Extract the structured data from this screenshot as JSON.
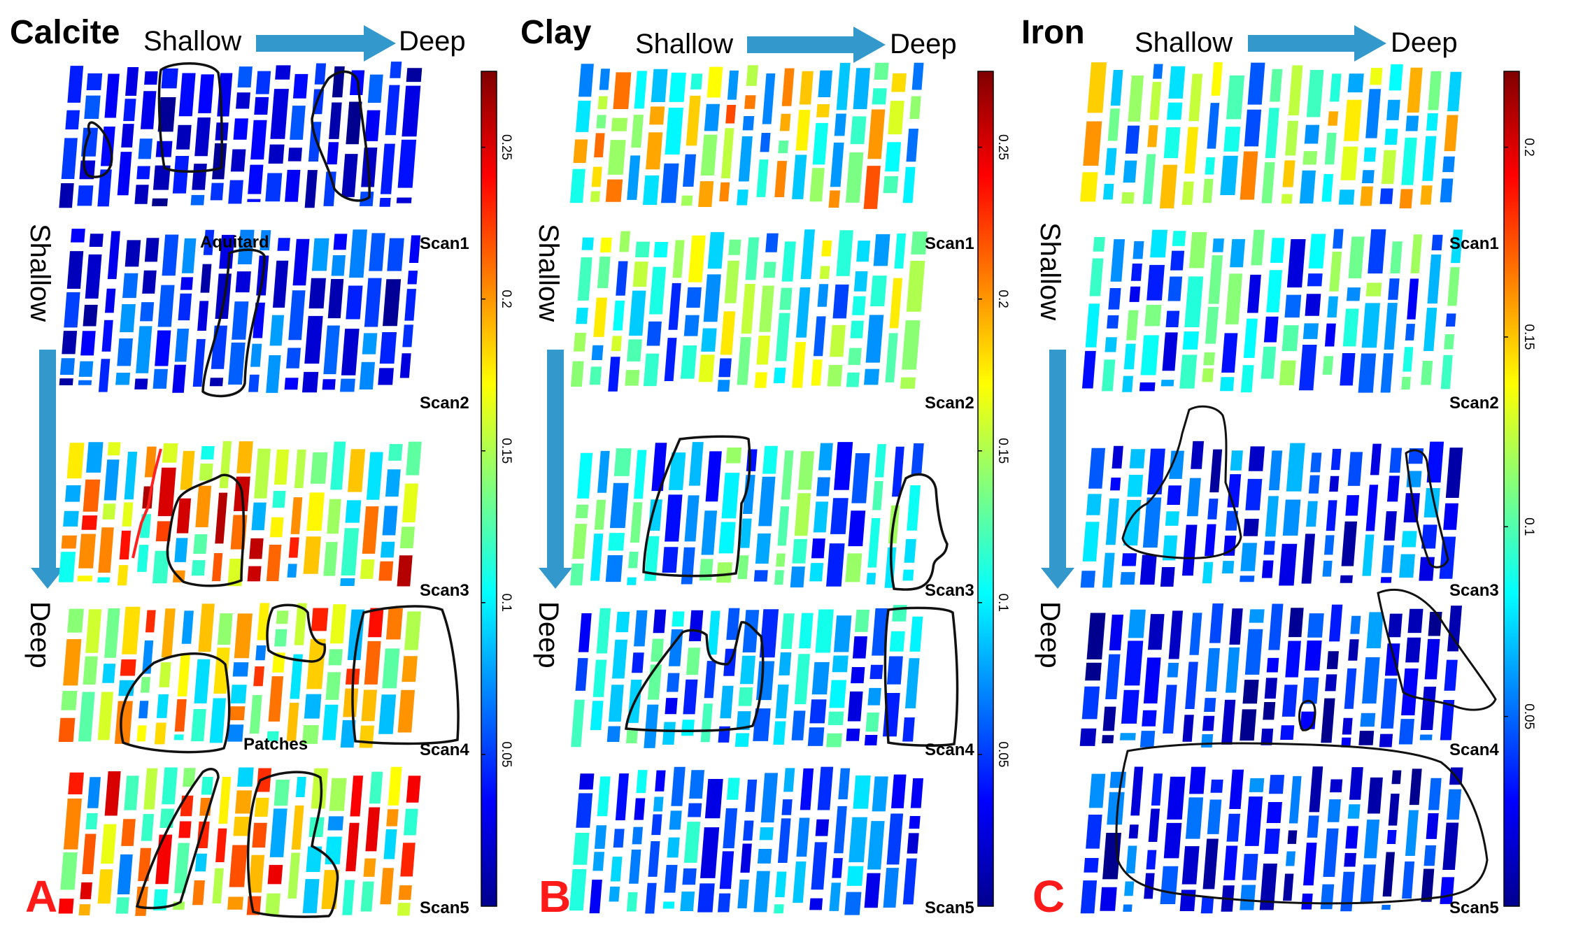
{
  "panels": [
    {
      "id": "A",
      "title": "Calcite",
      "letter": "A",
      "arrow_from": "Shallow",
      "arrow_to": "Deep",
      "vertical_from": "Shallow",
      "vertical_to": "Deep",
      "scans": [
        "Scan1",
        "Scan2",
        "Scan3",
        "Scan4",
        "Scan5"
      ],
      "annotations": [
        "Aquitard",
        "Patches"
      ],
      "colorbar_ticks": [
        "0.25",
        "0.2",
        "0.15",
        "0.1",
        "0.05"
      ],
      "colorbar_tick_values": [
        0.25,
        0.2,
        0.15,
        0.1,
        0.05
      ],
      "colorbar_range": [
        0,
        0.275
      ],
      "scan_mean_levels": [
        0.03,
        0.04,
        0.17,
        0.15,
        0.16
      ]
    },
    {
      "id": "B",
      "title": "Clay",
      "letter": "B",
      "arrow_from": "Shallow",
      "arrow_to": "Deep",
      "vertical_from": "Shallow",
      "vertical_to": "Deep",
      "scans": [
        "Scan1",
        "Scan2",
        "Scan3",
        "Scan4",
        "Scan5"
      ],
      "annotations": [],
      "colorbar_ticks": [
        "0.25",
        "0.2",
        "0.15",
        "0.1",
        "0.05"
      ],
      "colorbar_tick_values": [
        0.25,
        0.2,
        0.15,
        0.1,
        0.05
      ],
      "colorbar_range": [
        0,
        0.275
      ],
      "scan_mean_levels": [
        0.14,
        0.11,
        0.09,
        0.08,
        0.07
      ]
    },
    {
      "id": "C",
      "title": "Iron",
      "letter": "C",
      "arrow_from": "Shallow",
      "arrow_to": "Deep",
      "vertical_from": "Shallow",
      "vertical_to": "Deep",
      "scans": [
        "Scan1",
        "Scan2",
        "Scan3",
        "Scan4",
        "Scan5"
      ],
      "annotations": [],
      "colorbar_ticks": [
        "0.2",
        "0.15",
        "0.1",
        "0.05"
      ],
      "colorbar_tick_values": [
        0.2,
        0.15,
        0.1,
        0.05
      ],
      "colorbar_range": [
        0,
        0.22
      ],
      "scan_mean_levels": [
        0.1,
        0.07,
        0.04,
        0.03,
        0.03
      ]
    }
  ],
  "colors": {
    "arrow": "#3399cc",
    "outline": "#111111",
    "letter": "#ff1a1a",
    "divide": "#ff2020"
  }
}
